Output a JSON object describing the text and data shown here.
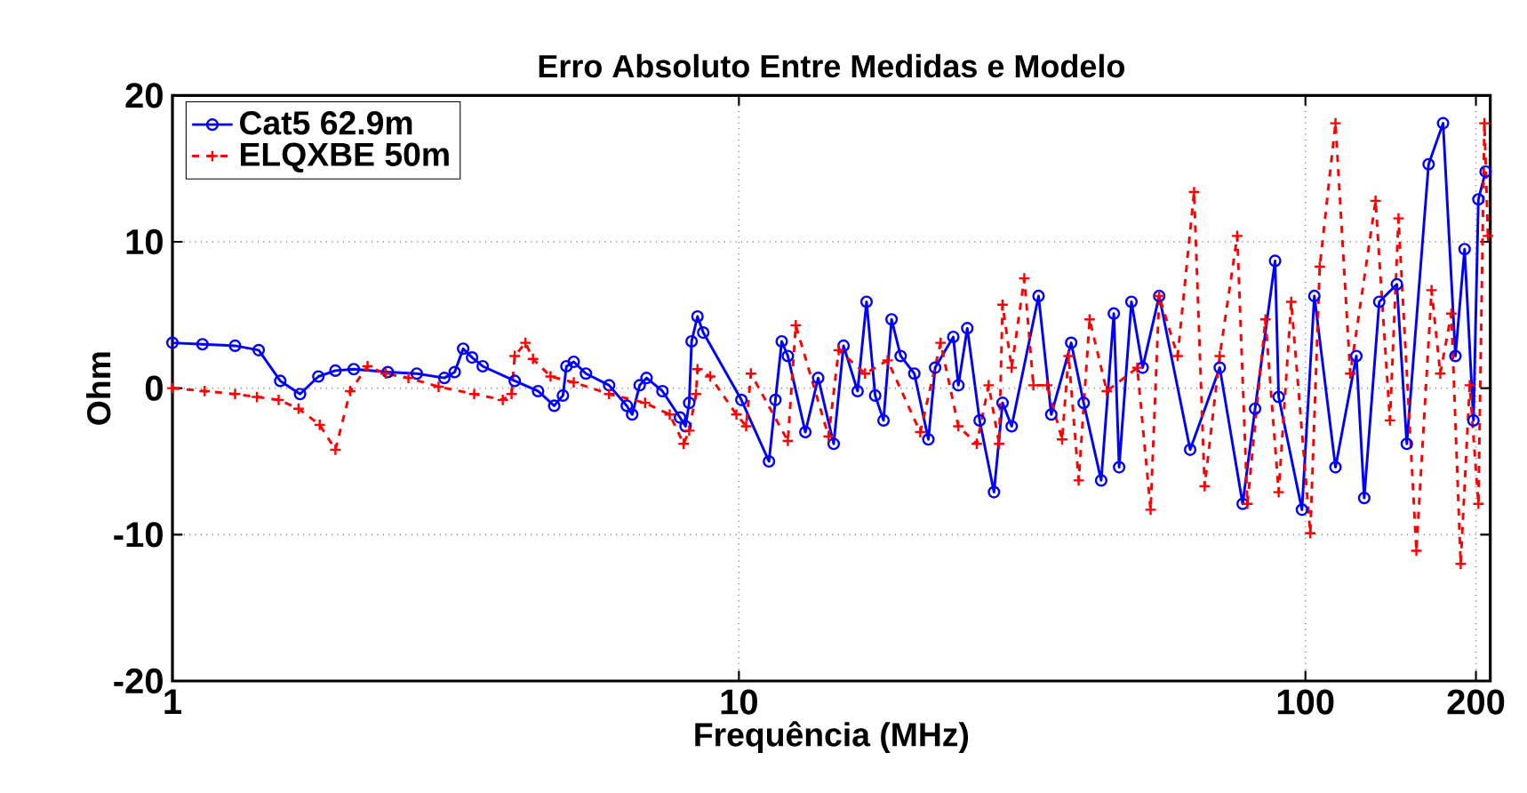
{
  "chart_data": {
    "type": "line",
    "title": "Erro Absoluto Entre Medidas e Modelo",
    "xlabel": "Frequência (MHz)",
    "ylabel": "Ohm",
    "log": "x",
    "grid": true,
    "legend": "top left",
    "xlim": [
      1,
      212
    ],
    "xticks": [
      1,
      10,
      100,
      200
    ],
    "ylim": [
      -20,
      20
    ],
    "yticks": [
      -20,
      -10,
      0,
      10,
      20
    ],
    "series": [
      {
        "name": "Cat5 62.9m",
        "color": "#0000ff",
        "marker": "circle",
        "line_style": "solid",
        "x": [
          1.0,
          1.13,
          1.29,
          1.42,
          1.55,
          1.68,
          1.81,
          1.94,
          2.09,
          2.4,
          2.7,
          3.02,
          3.15,
          3.26,
          3.38,
          3.53,
          4.02,
          4.42,
          4.72,
          4.89,
          4.96,
          5.11,
          5.37,
          5.9,
          6.34,
          6.48,
          6.68,
          6.87,
          7.33,
          7.87,
          8.05,
          8.17,
          8.25,
          8.45,
          8.65,
          10.1,
          11.3,
          11.6,
          11.9,
          12.2,
          13.1,
          13.8,
          14.7,
          15.3,
          16.2,
          16.8,
          17.4,
          18.0,
          18.6,
          19.3,
          20.4,
          21.6,
          22.2,
          23.9,
          24.4,
          25.3,
          26.6,
          28.2,
          29.2,
          30.3,
          33.8,
          35.6,
          38.6,
          40.6,
          43.6,
          45.9,
          46.9,
          49.3,
          51.6,
          55.2,
          62.6,
          70.6,
          77.5,
          81.5,
          88.4,
          89.7,
          98.6,
          103.7,
          113,
          123,
          127,
          135,
          145,
          151,
          165,
          175,
          184,
          191,
          198,
          202,
          208
        ],
        "values": [
          3.1,
          3.0,
          2.9,
          2.6,
          0.5,
          -0.4,
          0.8,
          1.2,
          1.3,
          1.1,
          1.0,
          0.7,
          1.1,
          2.7,
          2.1,
          1.5,
          0.5,
          -0.2,
          -1.2,
          -0.5,
          1.5,
          1.8,
          1.0,
          0.2,
          -1.2,
          -1.8,
          0.2,
          0.7,
          -0.2,
          -2.0,
          -2.6,
          -1.0,
          3.2,
          4.9,
          3.8,
          -0.8,
          -5.0,
          -0.8,
          3.2,
          2.2,
          -3.0,
          0.7,
          -3.8,
          2.9,
          -0.2,
          5.9,
          -0.5,
          -2.2,
          4.7,
          2.2,
          1.0,
          -3.5,
          1.4,
          3.5,
          0.2,
          4.1,
          -2.2,
          -7.1,
          -1.0,
          -2.6,
          6.3,
          -1.8,
          3.1,
          -1.0,
          -6.3,
          5.1,
          -5.4,
          5.9,
          1.4,
          6.3,
          -4.2,
          1.4,
          -7.9,
          -1.4,
          8.7,
          -0.6,
          -8.3,
          6.3,
          -5.4,
          2.2,
          -7.5,
          5.9,
          7.1,
          -3.8,
          15.3,
          18.1,
          2.2,
          9.5,
          -2.2,
          12.9,
          14.8
        ]
      },
      {
        "name": "ELQXBE 50m",
        "color": "#ff0000",
        "marker": "cross",
        "line_style": "dashed",
        "x": [
          1.0,
          1.14,
          1.29,
          1.41,
          1.54,
          1.67,
          1.82,
          1.94,
          2.06,
          2.21,
          2.38,
          2.61,
          2.95,
          3.41,
          3.83,
          3.97,
          4.02,
          4.2,
          4.33,
          4.65,
          5.11,
          5.9,
          6.83,
          7.55,
          7.99,
          8.17,
          8.4,
          8.45,
          8.9,
          9.9,
          10.3,
          10.5,
          12.2,
          12.6,
          14.4,
          15.0,
          16.7,
          18.3,
          20.9,
          22.7,
          24.4,
          26.3,
          27.6,
          28.8,
          29.2,
          30.3,
          31.9,
          33.1,
          35.0,
          37.2,
          38.2,
          39.8,
          41.6,
          44.6,
          50.5,
          53.3,
          55.2,
          59.5,
          63.6,
          66.4,
          70.6,
          75.8,
          79,
          85,
          89.7,
          94.4,
          102,
          106,
          113,
          120,
          133,
          141,
          146,
          157,
          167,
          173,
          181,
          188,
          195,
          202,
          207,
          210
        ],
        "values": [
          0.0,
          -0.2,
          -0.4,
          -0.6,
          -0.8,
          -1.4,
          -2.5,
          -4.2,
          -0.2,
          1.5,
          1.0,
          0.7,
          0.1,
          -0.4,
          -0.8,
          -0.4,
          2.2,
          3.1,
          2.0,
          0.8,
          0.4,
          -0.4,
          -1.0,
          -1.8,
          -3.8,
          -2.9,
          -0.4,
          1.3,
          0.8,
          -1.8,
          -2.6,
          1.0,
          -3.6,
          4.3,
          -3.3,
          2.6,
          1.0,
          1.9,
          -3.0,
          3.1,
          -2.6,
          -3.8,
          0.2,
          -3.8,
          5.7,
          1.4,
          7.5,
          0.2,
          0.2,
          -3.5,
          2.2,
          -6.3,
          4.7,
          -0.2,
          1.4,
          -8.3,
          6.3,
          2.2,
          13.4,
          -6.7,
          2.2,
          10.4,
          -7.9,
          4.7,
          -7.1,
          5.9,
          -9.9,
          8.3,
          18.1,
          1.0,
          12.8,
          -2.2,
          11.6,
          -11.1,
          6.7,
          1.0,
          5.1,
          -12.0,
          0.2,
          -7.9,
          18.1,
          10.4
        ]
      }
    ]
  }
}
